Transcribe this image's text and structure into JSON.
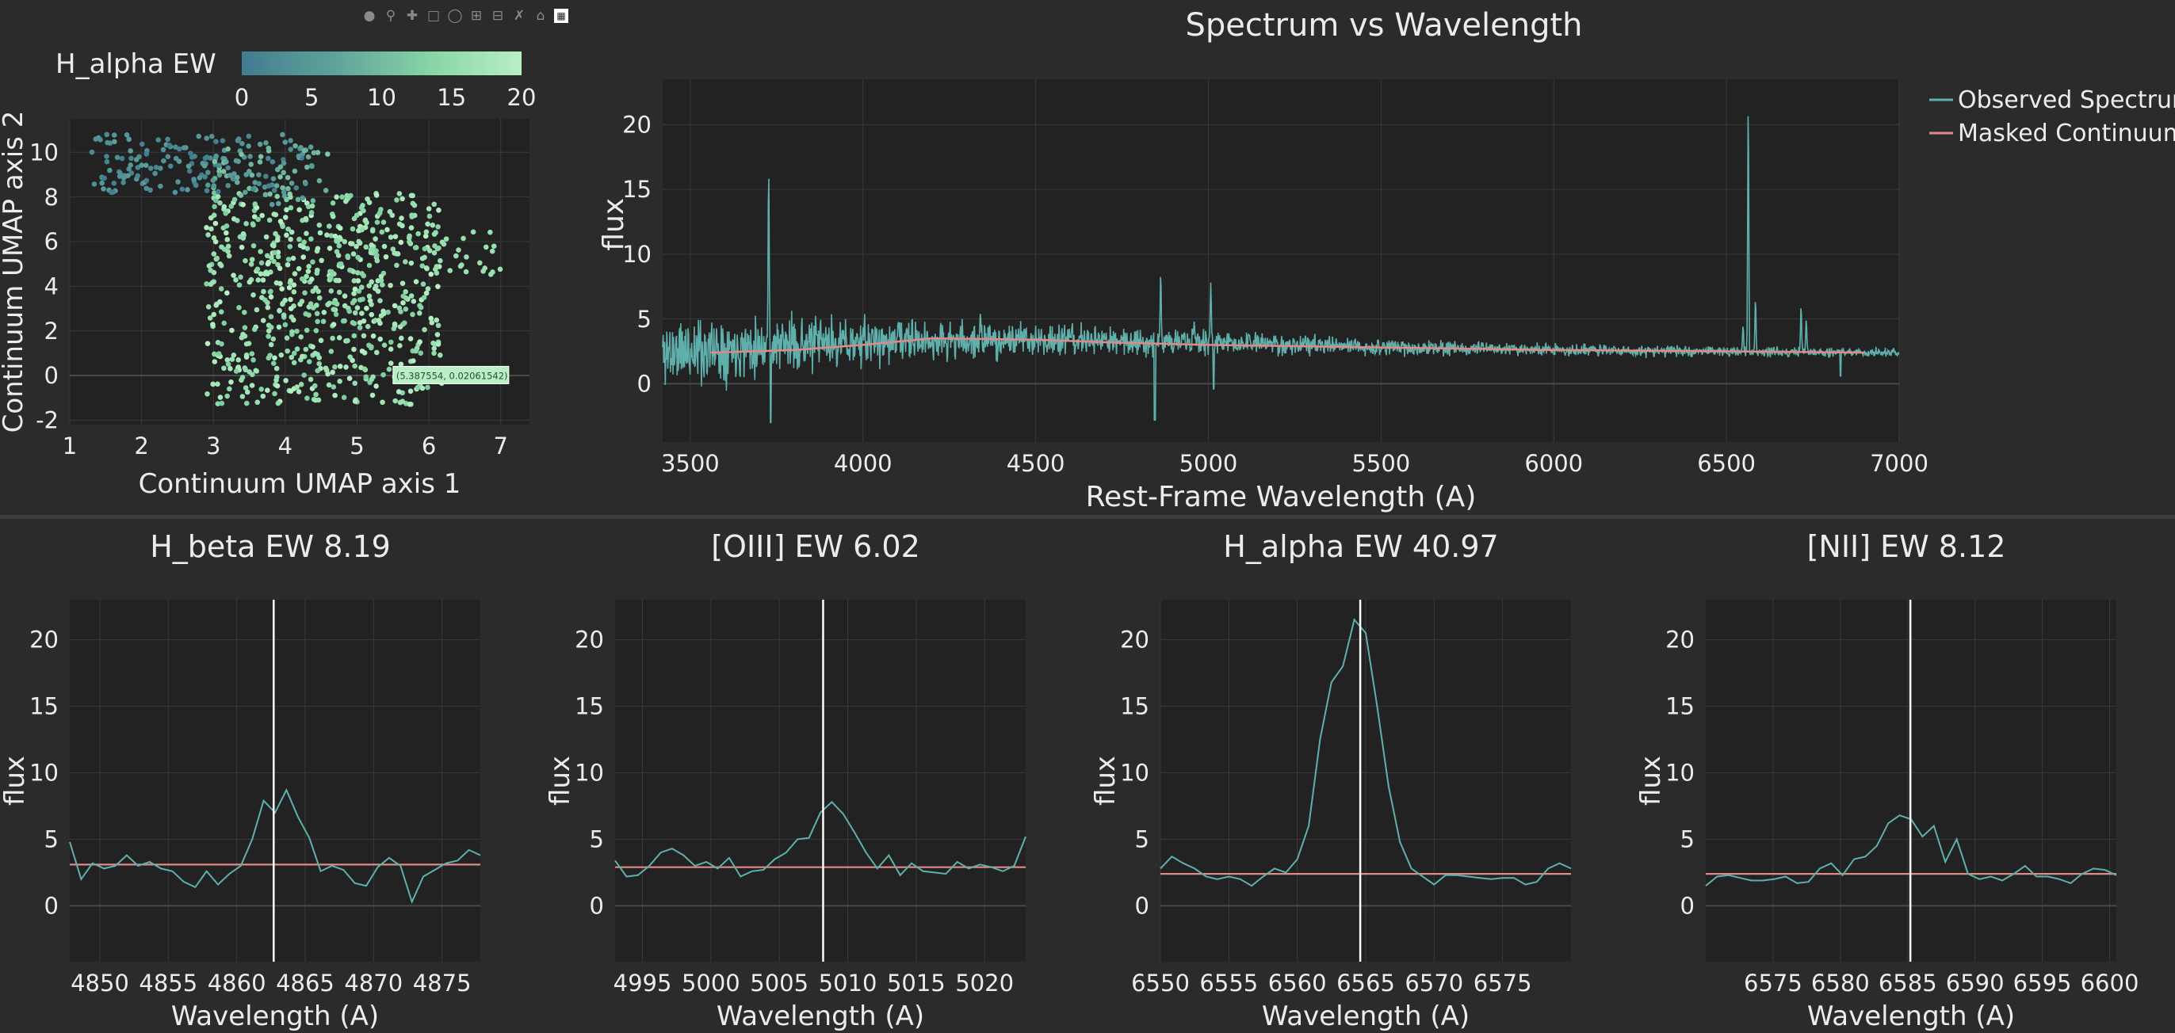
{
  "modebar": {
    "icons": [
      "camera-icon",
      "zoom-icon",
      "pan-icon",
      "box-select-icon",
      "lasso-icon",
      "zoom-in-icon",
      "zoom-out-icon",
      "autoscale-icon",
      "home-icon",
      "plotly-logo-icon"
    ]
  },
  "colors": {
    "background": "#2b2b2b",
    "plot_bg": "#222222",
    "spectrum": "#5fb0ac",
    "continuum": "#e08a86",
    "marker_line": "#ffffff",
    "colorscale": [
      "#417c90",
      "#5fa39a",
      "#86d4a4",
      "#b8f0c4"
    ]
  },
  "chart_data": [
    {
      "type": "scatter",
      "id": "umap",
      "xlabel": "Continuum UMAP axis 1",
      "ylabel": "Continuum UMAP axis 2",
      "xlim": [
        1,
        7.4
      ],
      "ylim": [
        -2.2,
        11.5
      ],
      "xticks": [
        1,
        2,
        3,
        4,
        5,
        6,
        7
      ],
      "yticks": [
        -2,
        0,
        2,
        4,
        6,
        8,
        10
      ],
      "colorbar": {
        "title": "H_alpha EW",
        "range": [
          0,
          20
        ],
        "ticks": [
          0,
          5,
          10,
          15,
          20
        ]
      },
      "hover_label": "(5.387554, 0.02061542)",
      "hover_point": [
        5.39,
        0.02
      ],
      "grid": true,
      "point_count": 950
    },
    {
      "type": "line",
      "id": "full-spectrum",
      "title": "Spectrum vs Wavelength",
      "xlabel": "Rest-Frame Wavelength (A)",
      "ylabel": "flux",
      "xlim": [
        3420,
        7000
      ],
      "ylim": [
        -4.5,
        23.5
      ],
      "xticks": [
        3500,
        4000,
        4500,
        5000,
        5500,
        6000,
        6500,
        7000
      ],
      "yticks": [
        0,
        5,
        10,
        15,
        20
      ],
      "legend": "top-right",
      "series": [
        {
          "name": "Observed Spectrum",
          "noise_profile": [
            [
              3420,
              2.4,
              2.2
            ],
            [
              3700,
              3.0,
              1.6
            ],
            [
              4000,
              3.2,
              1.3
            ],
            [
              4500,
              3.4,
              0.9
            ],
            [
              5000,
              3.2,
              0.75
            ],
            [
              5500,
              2.8,
              0.45
            ],
            [
              6000,
              2.6,
              0.35
            ],
            [
              6500,
              2.5,
              0.3
            ],
            [
              7000,
              2.4,
              0.25
            ]
          ],
          "lines": [
            [
              3727,
              16.5
            ],
            [
              4102,
              4.8
            ],
            [
              4340,
              5.5
            ],
            [
              4862,
              8.5
            ],
            [
              4959,
              4.8
            ],
            [
              5007,
              7.8
            ],
            [
              6548,
              4.5
            ],
            [
              6563,
              21.6
            ],
            [
              6584,
              6.5
            ],
            [
              6716,
              6.0
            ],
            [
              6731,
              5.0
            ]
          ],
          "dips": [
            [
              3733,
              -3.0
            ],
            [
              4845,
              -2.8
            ],
            [
              5015,
              -0.4
            ],
            [
              6830,
              0.6
            ]
          ]
        },
        {
          "name": "Masked Continuum",
          "points": [
            [
              3560,
              2.4
            ],
            [
              3800,
              2.6
            ],
            [
              4000,
              3.0
            ],
            [
              4200,
              3.5
            ],
            [
              4500,
              3.4
            ],
            [
              4700,
              3.2
            ],
            [
              5000,
              3.0
            ],
            [
              5500,
              2.8
            ],
            [
              6000,
              2.6
            ],
            [
              6500,
              2.5
            ],
            [
              6900,
              2.4
            ]
          ]
        }
      ],
      "grid": true
    },
    {
      "type": "line",
      "id": "hbeta",
      "title": "H_beta EW 8.19",
      "xlabel": "Wavelength (A)",
      "ylabel": "flux",
      "xlim": [
        4847.8,
        4877.8
      ],
      "ylim": [
        -4.2,
        23
      ],
      "xticks": [
        4850,
        4855,
        4860,
        4865,
        4870,
        4875
      ],
      "yticks": [
        0,
        5,
        10,
        15,
        20
      ],
      "marker_x": 4862.7,
      "continuum": 3.1,
      "flux": [
        4.8,
        2.0,
        3.2,
        2.8,
        3.0,
        3.8,
        3.0,
        3.3,
        2.8,
        2.6,
        1.8,
        1.4,
        2.6,
        1.6,
        2.4,
        3.0,
        5.0,
        7.9,
        7.0,
        8.7,
        6.7,
        5.1,
        2.6,
        3.0,
        2.7,
        1.7,
        1.5,
        2.9,
        3.6,
        3.0,
        0.3,
        2.2,
        2.7,
        3.2,
        3.4,
        4.2,
        3.8
      ],
      "grid": true
    },
    {
      "type": "line",
      "id": "oiii",
      "title": "[OIII] EW 6.02",
      "xlabel": "Wavelength (A)",
      "ylabel": "flux",
      "xlim": [
        4993,
        5023
      ],
      "ylim": [
        -4.2,
        23
      ],
      "xticks": [
        4995,
        5000,
        5005,
        5010,
        5015,
        5020
      ],
      "yticks": [
        0,
        5,
        10,
        15,
        20
      ],
      "marker_x": 5008.2,
      "continuum": 2.9,
      "flux": [
        3.4,
        2.2,
        2.3,
        3.0,
        4.0,
        4.3,
        3.8,
        3.0,
        3.3,
        2.8,
        3.6,
        2.2,
        2.6,
        2.7,
        3.5,
        4.0,
        5.0,
        5.1,
        7.0,
        7.8,
        6.9,
        5.5,
        4.0,
        2.8,
        3.8,
        2.3,
        3.2,
        2.6,
        2.5,
        2.4,
        3.3,
        2.8,
        3.1,
        2.9,
        2.6,
        3.0,
        5.2
      ],
      "grid": true
    },
    {
      "type": "line",
      "id": "halpha",
      "title": "H_alpha EW 40.97",
      "xlabel": "Wavelength (A)",
      "ylabel": "flux",
      "xlim": [
        6550,
        6580
      ],
      "ylim": [
        -4.2,
        23
      ],
      "xticks": [
        6550,
        6555,
        6560,
        6565,
        6570,
        6575
      ],
      "yticks": [
        0,
        5,
        10,
        15,
        20
      ],
      "marker_x": 6564.6,
      "continuum": 2.4,
      "flux": [
        2.8,
        3.7,
        3.2,
        2.8,
        2.2,
        2.0,
        2.2,
        2.0,
        1.5,
        2.2,
        2.8,
        2.5,
        3.5,
        6.0,
        12.5,
        16.8,
        18.0,
        21.5,
        20.5,
        15.0,
        9.0,
        4.8,
        2.8,
        2.2,
        1.6,
        2.3,
        2.3,
        2.2,
        2.1,
        2.0,
        2.1,
        2.1,
        1.6,
        1.8,
        2.8,
        3.2,
        2.8
      ],
      "grid": true
    },
    {
      "type": "line",
      "id": "nii",
      "title": "[NII] EW 8.12",
      "xlabel": "Wavelength (A)",
      "ylabel": "flux",
      "xlim": [
        6570,
        6600.5
      ],
      "ylim": [
        -4.2,
        23
      ],
      "xticks": [
        6575,
        6580,
        6585,
        6590,
        6595,
        6600
      ],
      "yticks": [
        0,
        5,
        10,
        15,
        20
      ],
      "marker_x": 6585.2,
      "continuum": 2.4,
      "flux": [
        1.5,
        2.2,
        2.3,
        2.1,
        1.9,
        1.9,
        2.0,
        2.2,
        1.7,
        1.8,
        2.8,
        3.2,
        2.3,
        3.5,
        3.7,
        4.5,
        6.2,
        6.8,
        6.5,
        5.2,
        6.0,
        3.3,
        5.0,
        2.4,
        2.0,
        2.2,
        1.9,
        2.4,
        3.0,
        2.2,
        2.2,
        2.0,
        1.7,
        2.4,
        2.8,
        2.7,
        2.3
      ],
      "grid": true
    }
  ]
}
